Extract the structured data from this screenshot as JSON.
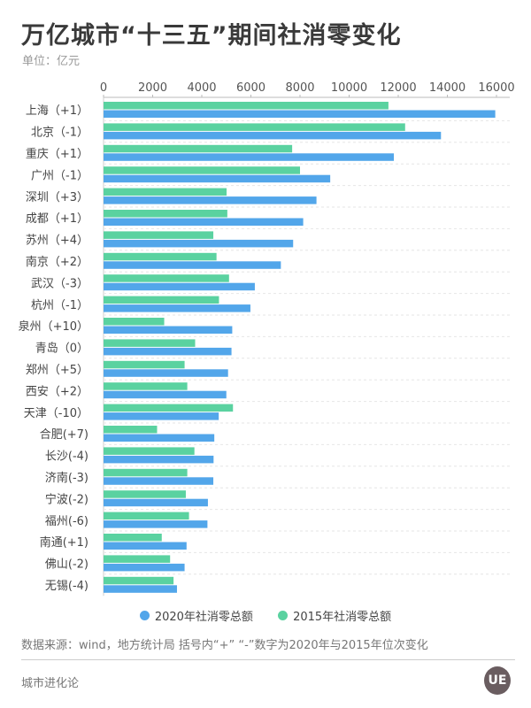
{
  "chart_data": {
    "type": "bar",
    "orientation": "horizontal",
    "title": "万亿城市“十三五”期间社消零变化",
    "subtitle": "单位：亿元",
    "categories": [
      "上海（+1）",
      "北京（-1）",
      "重庆（+1）",
      "广州（-1）",
      "深圳（+3）",
      "成都（+1）",
      "苏州（+4）",
      "南京（+2）",
      "武汉（-3）",
      "杭州（-1）",
      "泉州（+10）",
      "青岛（0）",
      "郑州（+5）",
      "西安（+2）",
      "天津（-10）",
      "合肥(+7)",
      "长沙(-4)",
      "济南(-3)",
      "宁波(-2)",
      "福州(-6)",
      "南通(+1)",
      "佛山(-2)",
      "无锡(-4)"
    ],
    "series": [
      {
        "name": "2015年社消零总额",
        "color": "#5ad2a0",
        "values": [
          11600,
          12280,
          7680,
          8000,
          5010,
          5040,
          4470,
          4600,
          5110,
          4700,
          2470,
          3730,
          3300,
          3410,
          5270,
          2180,
          3700,
          3410,
          3350,
          3480,
          2370,
          2710,
          2850
        ]
      },
      {
        "name": "2020年社消零总额",
        "color": "#52a6ea",
        "values": [
          15950,
          13740,
          11820,
          9230,
          8670,
          8130,
          7720,
          7220,
          6160,
          5980,
          5240,
          5210,
          5070,
          5000,
          4690,
          4510,
          4480,
          4470,
          4250,
          4230,
          3380,
          3300,
          2990
        ]
      }
    ],
    "legend_order": [
      "2020年社消零总额",
      "2015年社消零总额"
    ],
    "xlim": [
      0,
      16000
    ],
    "xticks": [
      "0",
      "2000",
      "4000",
      "6000",
      "8000",
      "10000",
      "12000",
      "14000",
      "16000"
    ],
    "axis_position": "top",
    "grid": "dashed horizontal",
    "legend_placement": "bottom"
  },
  "source": "数据来源：wind，地方统计局 括号内“+” “-”数字为2020年与2015年位次变化",
  "footer": "城市进化论",
  "logo_text": "UE"
}
